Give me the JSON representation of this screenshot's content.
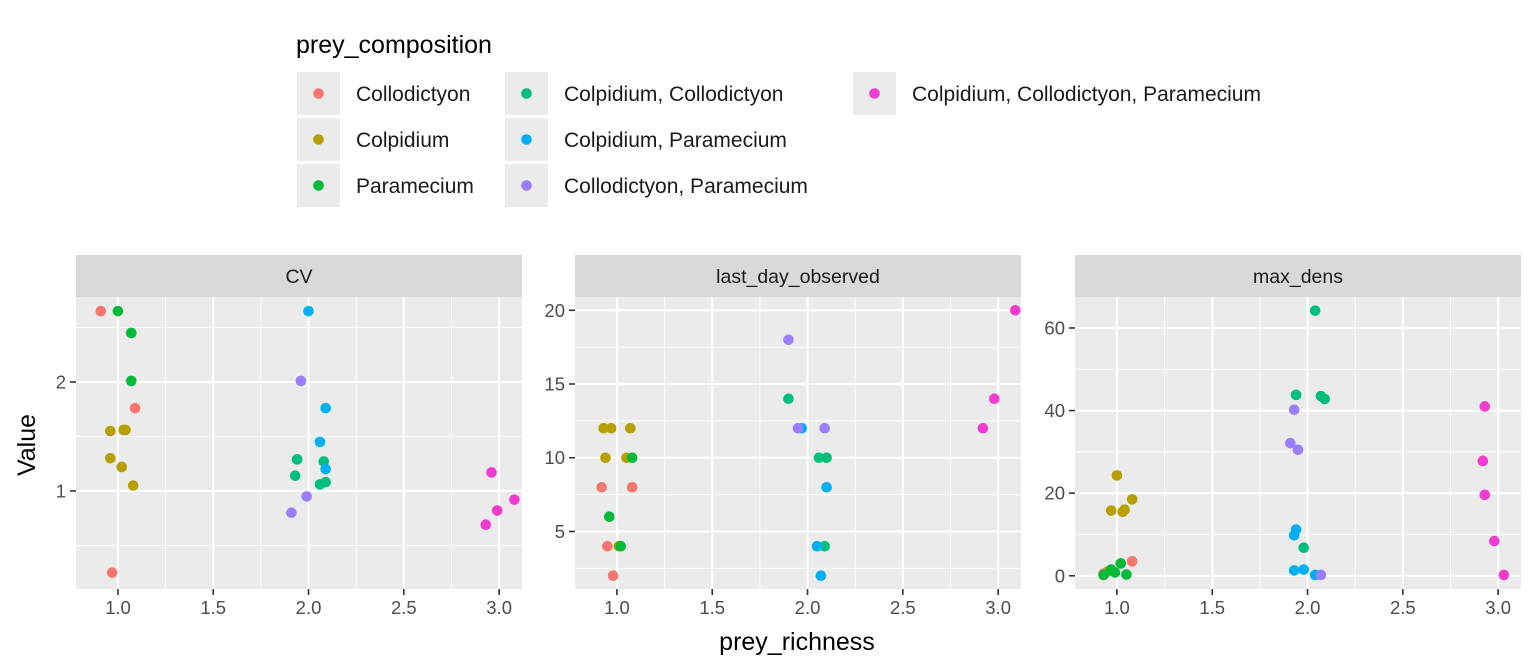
{
  "chart_data": {
    "type": "scatter",
    "xlabel": "prey_richness",
    "ylabel": "Value",
    "legend": {
      "title": "prey_composition",
      "position": "top",
      "entries": [
        {
          "name": "Collodictyon",
          "color": "#F8766D"
        },
        {
          "name": "Colpidium",
          "color": "#B79F00"
        },
        {
          "name": "Paramecium",
          "color": "#00BA38"
        },
        {
          "name": "Colpidium, Collodictyon",
          "color": "#00BF7D"
        },
        {
          "name": "Colpidium, Paramecium",
          "color": "#00B0F6"
        },
        {
          "name": "Collodictyon, Paramecium",
          "color": "#9B7DFF"
        },
        {
          "name": "Colpidium, Collodictyon, Paramecium",
          "color": "#F23CCF"
        }
      ]
    },
    "grid": true,
    "panels": [
      {
        "title": "CV",
        "xlim": [
          0.78,
          3.12
        ],
        "ylim": [
          0.1,
          2.78
        ],
        "xticks": [
          1.0,
          1.5,
          2.0,
          2.5,
          3.0
        ],
        "xtick_labels": [
          "1.0",
          "1.5",
          "2.0",
          "2.5",
          "3.0"
        ],
        "yticks": [
          1,
          2
        ],
        "ytick_labels": [
          "1",
          "2"
        ],
        "points": [
          {
            "x": 0.91,
            "y": 2.65,
            "g": 0
          },
          {
            "x": 1.09,
            "y": 1.76,
            "g": 0
          },
          {
            "x": 0.97,
            "y": 0.25,
            "g": 0
          },
          {
            "x": 0.96,
            "y": 1.55,
            "g": 1
          },
          {
            "x": 1.03,
            "y": 1.56,
            "g": 1
          },
          {
            "x": 1.04,
            "y": 1.56,
            "g": 1
          },
          {
            "x": 0.96,
            "y": 1.3,
            "g": 1
          },
          {
            "x": 1.02,
            "y": 1.22,
            "g": 1
          },
          {
            "x": 1.08,
            "y": 1.05,
            "g": 1
          },
          {
            "x": 1.0,
            "y": 2.65,
            "g": 2
          },
          {
            "x": 1.07,
            "y": 2.45,
            "g": 2
          },
          {
            "x": 1.07,
            "y": 2.01,
            "g": 2
          },
          {
            "x": 1.94,
            "y": 1.29,
            "g": 3
          },
          {
            "x": 1.93,
            "y": 1.14,
            "g": 3
          },
          {
            "x": 2.08,
            "y": 1.27,
            "g": 3
          },
          {
            "x": 2.06,
            "y": 1.06,
            "g": 3
          },
          {
            "x": 2.09,
            "y": 1.08,
            "g": 3
          },
          {
            "x": 2.0,
            "y": 2.65,
            "g": 4
          },
          {
            "x": 2.09,
            "y": 1.76,
            "g": 4
          },
          {
            "x": 2.06,
            "y": 1.45,
            "g": 4
          },
          {
            "x": 2.09,
            "y": 1.2,
            "g": 4
          },
          {
            "x": 1.96,
            "y": 2.01,
            "g": 5
          },
          {
            "x": 1.99,
            "y": 0.95,
            "g": 5
          },
          {
            "x": 1.91,
            "y": 0.8,
            "g": 5
          },
          {
            "x": 2.96,
            "y": 1.17,
            "g": 6
          },
          {
            "x": 2.99,
            "y": 0.82,
            "g": 6
          },
          {
            "x": 3.08,
            "y": 0.92,
            "g": 6
          },
          {
            "x": 2.93,
            "y": 0.69,
            "g": 6
          }
        ]
      },
      {
        "title": "last_day_observed",
        "xlim": [
          0.78,
          3.12
        ],
        "ylim": [
          1.1,
          20.9
        ],
        "xticks": [
          1.0,
          1.5,
          2.0,
          2.5,
          3.0
        ],
        "xtick_labels": [
          "1.0",
          "1.5",
          "2.0",
          "2.5",
          "3.0"
        ],
        "yticks": [
          5,
          10,
          15,
          20
        ],
        "ytick_labels": [
          "5",
          "10",
          "15",
          "20"
        ],
        "points": [
          {
            "x": 0.92,
            "y": 8,
            "g": 0
          },
          {
            "x": 0.95,
            "y": 4,
            "g": 0
          },
          {
            "x": 0.98,
            "y": 2,
            "g": 0
          },
          {
            "x": 1.08,
            "y": 8,
            "g": 0
          },
          {
            "x": 0.93,
            "y": 12,
            "g": 1
          },
          {
            "x": 0.97,
            "y": 12,
            "g": 1
          },
          {
            "x": 1.07,
            "y": 12,
            "g": 1
          },
          {
            "x": 0.94,
            "y": 10,
            "g": 1
          },
          {
            "x": 1.05,
            "y": 10,
            "g": 1
          },
          {
            "x": 1.01,
            "y": 4,
            "g": 1
          },
          {
            "x": 0.96,
            "y": 6,
            "g": 2
          },
          {
            "x": 1.08,
            "y": 10,
            "g": 2
          },
          {
            "x": 1.02,
            "y": 4,
            "g": 2
          },
          {
            "x": 1.9,
            "y": 14,
            "g": 3
          },
          {
            "x": 2.06,
            "y": 10,
            "g": 3
          },
          {
            "x": 2.1,
            "y": 10,
            "g": 3
          },
          {
            "x": 2.09,
            "y": 4,
            "g": 3
          },
          {
            "x": 1.97,
            "y": 12,
            "g": 4
          },
          {
            "x": 2.1,
            "y": 8,
            "g": 4
          },
          {
            "x": 2.05,
            "y": 4,
            "g": 4
          },
          {
            "x": 2.07,
            "y": 2,
            "g": 4
          },
          {
            "x": 1.9,
            "y": 18,
            "g": 5
          },
          {
            "x": 1.95,
            "y": 12,
            "g": 5
          },
          {
            "x": 2.09,
            "y": 12,
            "g": 5
          },
          {
            "x": 3.09,
            "y": 20,
            "g": 6
          },
          {
            "x": 2.98,
            "y": 14,
            "g": 6
          },
          {
            "x": 2.92,
            "y": 12,
            "g": 6
          }
        ]
      },
      {
        "title": "max_dens",
        "xlim": [
          0.78,
          3.12
        ],
        "ylim": [
          -3.2,
          67.5
        ],
        "xticks": [
          1.0,
          1.5,
          2.0,
          2.5,
          3.0
        ],
        "xtick_labels": [
          "1.0",
          "1.5",
          "2.0",
          "2.5",
          "3.0"
        ],
        "yticks": [
          0,
          20,
          40,
          60
        ],
        "ytick_labels": [
          "0",
          "20",
          "40",
          "60"
        ],
        "points": [
          {
            "x": 0.93,
            "y": 0.5,
            "g": 0
          },
          {
            "x": 1.08,
            "y": 3.5,
            "g": 0
          },
          {
            "x": 1.0,
            "y": 24.3,
            "g": 1
          },
          {
            "x": 0.97,
            "y": 15.8,
            "g": 1
          },
          {
            "x": 1.03,
            "y": 15.5,
            "g": 1
          },
          {
            "x": 1.04,
            "y": 16.0,
            "g": 1
          },
          {
            "x": 1.08,
            "y": 18.5,
            "g": 1
          },
          {
            "x": 0.95,
            "y": 1.0,
            "g": 1
          },
          {
            "x": 0.93,
            "y": 0.2,
            "g": 2
          },
          {
            "x": 0.97,
            "y": 1.5,
            "g": 2
          },
          {
            "x": 1.02,
            "y": 3.0,
            "g": 2
          },
          {
            "x": 1.05,
            "y": 0.3,
            "g": 2
          },
          {
            "x": 0.99,
            "y": 0.8,
            "g": 2
          },
          {
            "x": 2.04,
            "y": 64.2,
            "g": 3
          },
          {
            "x": 1.94,
            "y": 43.8,
            "g": 3
          },
          {
            "x": 2.07,
            "y": 43.5,
            "g": 3
          },
          {
            "x": 2.09,
            "y": 42.8,
            "g": 3
          },
          {
            "x": 1.98,
            "y": 6.8,
            "g": 3
          },
          {
            "x": 1.94,
            "y": 11.2,
            "g": 4
          },
          {
            "x": 1.93,
            "y": 9.8,
            "g": 4
          },
          {
            "x": 1.93,
            "y": 1.3,
            "g": 4
          },
          {
            "x": 1.98,
            "y": 1.5,
            "g": 4
          },
          {
            "x": 2.04,
            "y": 0.2,
            "g": 4
          },
          {
            "x": 1.93,
            "y": 40.2,
            "g": 5
          },
          {
            "x": 1.91,
            "y": 32.1,
            "g": 5
          },
          {
            "x": 1.95,
            "y": 30.5,
            "g": 5
          },
          {
            "x": 2.07,
            "y": 0.2,
            "g": 5
          },
          {
            "x": 2.93,
            "y": 41.0,
            "g": 6
          },
          {
            "x": 2.92,
            "y": 27.8,
            "g": 6
          },
          {
            "x": 2.93,
            "y": 19.6,
            "g": 6
          },
          {
            "x": 2.98,
            "y": 8.4,
            "g": 6
          },
          {
            "x": 3.03,
            "y": 0.2,
            "g": 6
          }
        ]
      }
    ]
  }
}
